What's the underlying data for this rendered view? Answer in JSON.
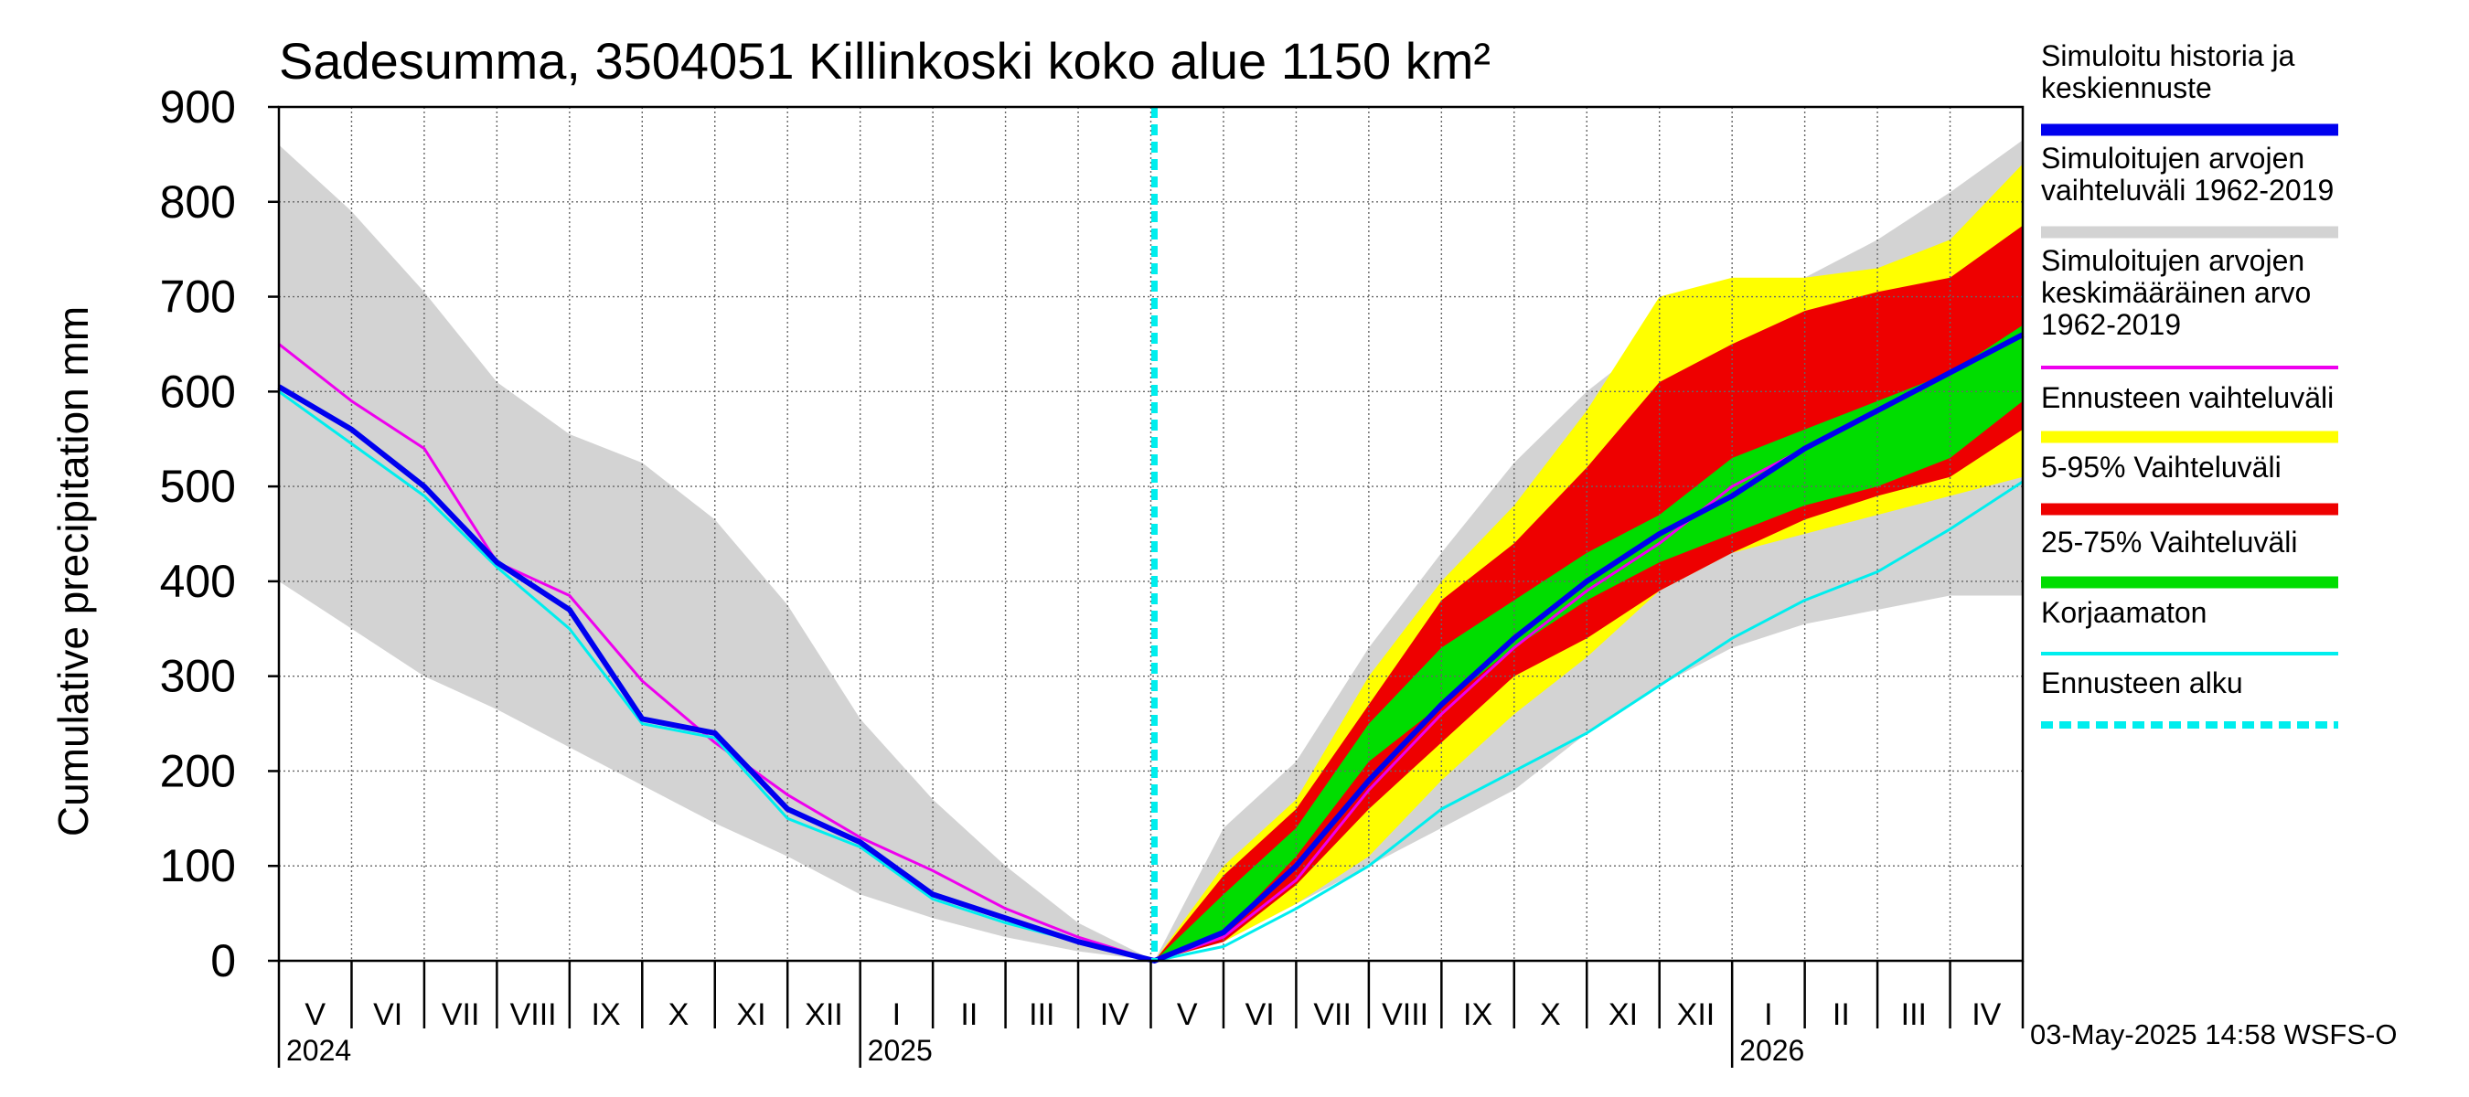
{
  "chart_data": {
    "type": "area",
    "title": "Sadesumma, 3504051 Killinkoski koko alue 1150 km²",
    "ylabel": "Cumulative precipitation    mm",
    "xlabel": "",
    "ylim": [
      0,
      900
    ],
    "yticks": [
      0,
      100,
      200,
      300,
      400,
      500,
      600,
      700,
      800,
      900
    ],
    "x_unit": "month index (0 = start of May 2024, 24 = end of April 2026)",
    "xlim": [
      0,
      24
    ],
    "forecast_start_x": 12.05,
    "months": [
      "V",
      "VI",
      "VII",
      "VIII",
      "IX",
      "X",
      "XI",
      "XII",
      "I",
      "II",
      "III",
      "IV",
      "V",
      "VI",
      "VII",
      "VIII",
      "IX",
      "X",
      "XI",
      "XII",
      "I",
      "II",
      "III",
      "IV"
    ],
    "years": [
      {
        "label": "2024",
        "x": 0
      },
      {
        "label": "2025",
        "x": 8
      },
      {
        "label": "2026",
        "x": 20
      }
    ],
    "grid": true,
    "timestamp": "03-May-2025 14:58 WSFS-O",
    "legend": [
      {
        "label": "Simuloitu historia ja keskiennuste",
        "lines": [
          "Simuloitu historia ja",
          "keskiennuste"
        ],
        "color": "#0000ee",
        "style": "thick"
      },
      {
        "label": "Simuloitujen arvojen vaihteluväli 1962-2019",
        "lines": [
          "Simuloitujen arvojen",
          "vaihteluväli 1962-2019"
        ],
        "color": "#d3d3d3",
        "style": "thick"
      },
      {
        "label": "Simuloitujen arvojen keskimääräinen arvo 1962-2019",
        "lines": [
          "Simuloitujen arvojen",
          "keskimääräinen arvo",
          "   1962-2019"
        ],
        "color": "#ee00ee",
        "style": "thin"
      },
      {
        "label": "Ennusteen vaihteluväli",
        "lines": [
          "Ennusteen vaihteluväli"
        ],
        "color": "#ffff00",
        "style": "thick"
      },
      {
        "label": "5-95% Vaihteluväli",
        "lines": [
          "5-95% Vaihteluväli"
        ],
        "color": "#ee0000",
        "style": "thick"
      },
      {
        "label": "25-75% Vaihteluväli",
        "lines": [
          "25-75% Vaihteluväli"
        ],
        "color": "#00dd00",
        "style": "thick"
      },
      {
        "label": "Korjaamaton",
        "lines": [
          "Korjaamaton"
        ],
        "color": "#00eeee",
        "style": "thin"
      },
      {
        "label": "Ennusteen alku",
        "lines": [
          "Ennusteen alku"
        ],
        "color": "#00eeee",
        "style": "dashed"
      }
    ],
    "series": [
      {
        "name": "Simuloitujen arvojen vaihteluväli 1962-2019 (historical)",
        "kind": "band",
        "color": "#d3d3d3",
        "x": [
          0,
          1,
          2,
          3,
          4,
          5,
          6,
          7,
          8,
          9,
          10,
          11,
          12.05
        ],
        "low": [
          400,
          350,
          300,
          265,
          225,
          185,
          145,
          110,
          70,
          45,
          25,
          10,
          0
        ],
        "high": [
          860,
          790,
          705,
          610,
          555,
          525,
          465,
          375,
          255,
          170,
          100,
          40,
          0
        ]
      },
      {
        "name": "Simuloitujen arvojen vaihteluväli 1962-2019 (forecast)",
        "kind": "band",
        "color": "#d3d3d3",
        "x": [
          12.05,
          13,
          14,
          15,
          16,
          17,
          18,
          19,
          20,
          21,
          22,
          23,
          24
        ],
        "low": [
          0,
          20,
          60,
          100,
          140,
          180,
          240,
          290,
          330,
          355,
          370,
          385,
          385
        ],
        "high": [
          0,
          140,
          210,
          330,
          430,
          525,
          600,
          660,
          690,
          720,
          760,
          810,
          865
        ]
      },
      {
        "name": "Ennusteen vaihteluväli",
        "kind": "band",
        "color": "#ffff00",
        "x": [
          12.05,
          13,
          14,
          15,
          16,
          17,
          18,
          19,
          20,
          21,
          22,
          23,
          24
        ],
        "low": [
          0,
          20,
          60,
          110,
          190,
          260,
          320,
          390,
          430,
          450,
          470,
          490,
          510
        ],
        "high": [
          0,
          100,
          170,
          300,
          400,
          480,
          580,
          700,
          720,
          720,
          730,
          760,
          840
        ]
      },
      {
        "name": "5-95% Vaihteluväli",
        "kind": "band",
        "color": "#ee0000",
        "x": [
          12.05,
          13,
          14,
          15,
          16,
          17,
          18,
          19,
          20,
          21,
          22,
          23,
          24
        ],
        "low": [
          0,
          20,
          80,
          160,
          230,
          300,
          340,
          390,
          430,
          465,
          490,
          510,
          560
        ],
        "high": [
          0,
          90,
          160,
          270,
          380,
          440,
          520,
          610,
          650,
          685,
          705,
          720,
          775
        ]
      },
      {
        "name": "25-75% Vaihteluväli",
        "kind": "band",
        "color": "#00dd00",
        "x": [
          12.05,
          13,
          14,
          15,
          16,
          17,
          18,
          19,
          20,
          21,
          22,
          23,
          24
        ],
        "low": [
          0,
          30,
          110,
          210,
          270,
          330,
          380,
          420,
          450,
          480,
          500,
          530,
          590
        ],
        "high": [
          0,
          70,
          140,
          250,
          330,
          380,
          430,
          470,
          530,
          560,
          590,
          620,
          670
        ]
      },
      {
        "name": "Simuloitujen arvojen keskimääräinen arvo 1962-2019",
        "kind": "line",
        "color": "#ee00ee",
        "width": 3,
        "x": [
          0,
          1,
          2,
          3,
          4,
          5,
          6,
          7,
          8,
          9,
          10,
          11,
          12.05,
          13,
          14,
          15,
          16,
          17,
          18,
          19,
          20,
          21,
          22,
          23,
          24
        ],
        "y": [
          650,
          590,
          540,
          420,
          385,
          295,
          230,
          175,
          130,
          95,
          55,
          25,
          0,
          25,
          85,
          180,
          260,
          330,
          390,
          440,
          500,
          540,
          580,
          620,
          660
        ]
      },
      {
        "name": "Korjaamaton",
        "kind": "line",
        "color": "#00eeee",
        "width": 3,
        "x": [
          0,
          1,
          2,
          3,
          4,
          5,
          6,
          7,
          8,
          9,
          10,
          11,
          12.05,
          13,
          14,
          15,
          16,
          17,
          18,
          19,
          20,
          21,
          22,
          23,
          24
        ],
        "y": [
          600,
          545,
          490,
          415,
          350,
          250,
          235,
          150,
          120,
          65,
          40,
          20,
          0,
          15,
          55,
          100,
          160,
          200,
          240,
          290,
          340,
          380,
          410,
          455,
          505
        ]
      },
      {
        "name": "Simuloitu historia ja keskiennuste",
        "kind": "line",
        "color": "#0000ee",
        "width": 6,
        "x": [
          0,
          1,
          2,
          3,
          4,
          5,
          6,
          7,
          8,
          9,
          10,
          11,
          12.05,
          13,
          14,
          15,
          16,
          17,
          18,
          19,
          20,
          21,
          22,
          23,
          24
        ],
        "y": [
          605,
          560,
          500,
          420,
          370,
          255,
          240,
          160,
          125,
          70,
          45,
          20,
          0,
          30,
          100,
          190,
          270,
          340,
          400,
          450,
          490,
          540,
          580,
          620,
          660
        ]
      }
    ]
  }
}
